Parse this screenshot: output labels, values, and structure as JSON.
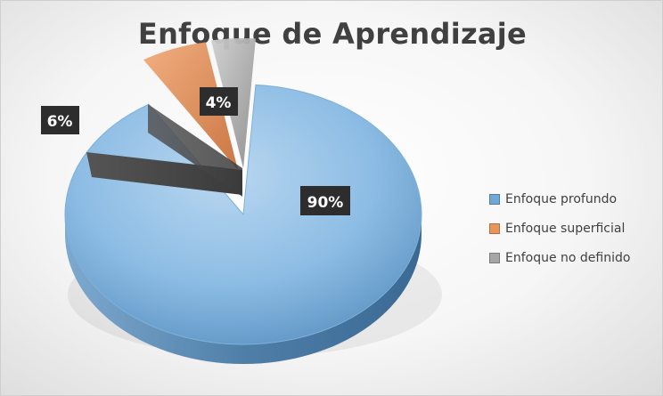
{
  "chart_data": {
    "type": "pie",
    "title": "Enfoque de Aprendizaje",
    "categories": [
      "Enfoque profundo",
      "Enfoque superficial",
      "Enfoque no definido"
    ],
    "values": [
      90,
      6,
      4
    ],
    "data_labels": [
      "90%",
      "6%",
      "4%"
    ],
    "colors": [
      "#6fa7d6",
      "#e8945a",
      "#a6a6a6"
    ],
    "legend_position": "right",
    "style": "3d-exploded"
  }
}
